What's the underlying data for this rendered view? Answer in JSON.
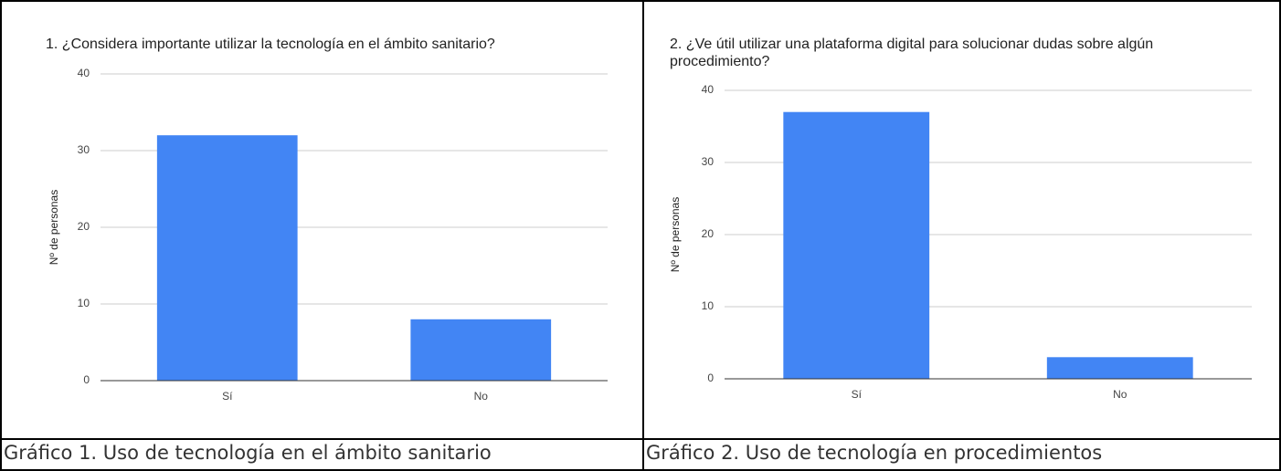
{
  "chart_data": [
    {
      "type": "bar",
      "title": "1. ¿Considera importante utilizar la tecnología en el ámbito sanitario?",
      "y_label": "Nº de personas",
      "categories": [
        "Sí",
        "No"
      ],
      "values": [
        32,
        8
      ],
      "color": "#4285f4",
      "ylim": [
        0,
        40
      ],
      "yticks": [
        0,
        10,
        20,
        30,
        40
      ],
      "grid": true,
      "caption": "Gráfico 1. Uso de tecnología en el ámbito sanitario"
    },
    {
      "type": "bar",
      "title": "2. ¿Ve útil utilizar una plataforma digital para solucionar dudas sobre algún procedimiento?",
      "y_label": "Nº de personas",
      "categories": [
        "Sí",
        "No"
      ],
      "values": [
        37,
        3
      ],
      "color": "#4285f4",
      "ylim": [
        0,
        40
      ],
      "yticks": [
        0,
        10,
        20,
        30,
        40
      ],
      "grid": true,
      "caption": "Gráfico 2. Uso de tecnología en procedimientos"
    }
  ]
}
